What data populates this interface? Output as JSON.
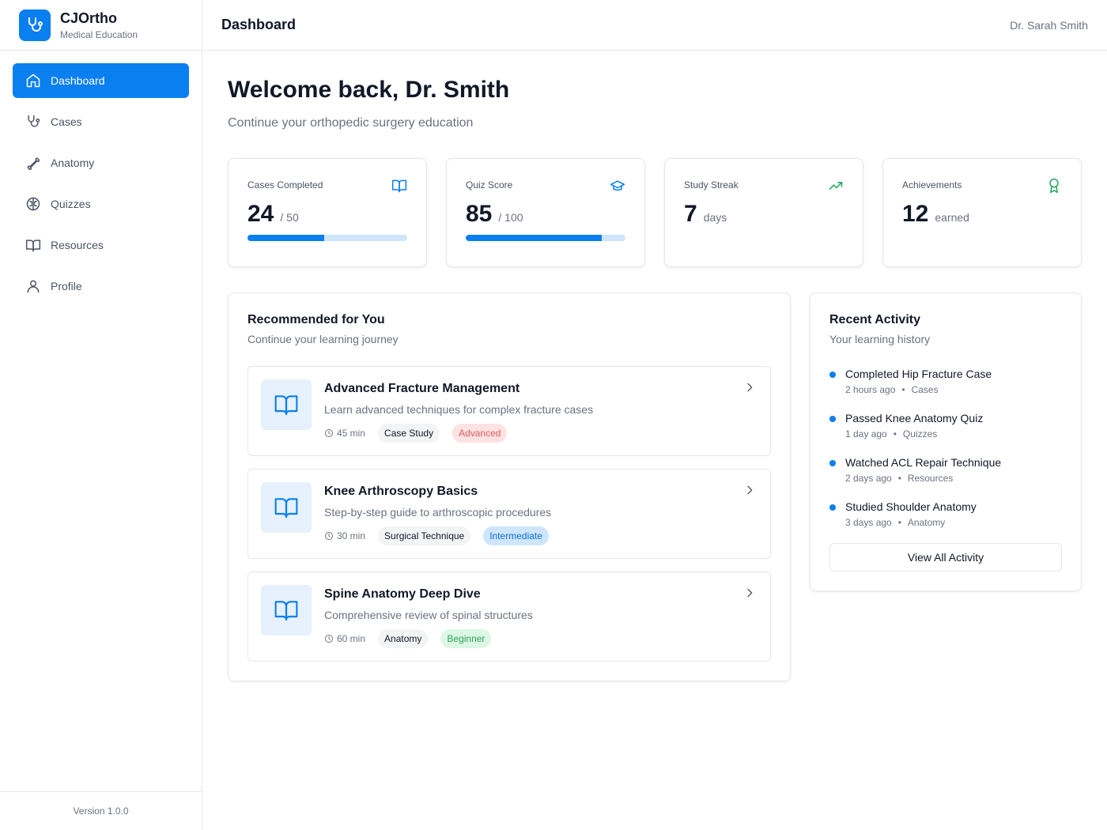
{
  "brand": {
    "name": "CJOrtho",
    "subtitle": "Medical Education"
  },
  "nav": {
    "items": [
      {
        "label": "Dashboard",
        "icon": "home-icon",
        "active": true
      },
      {
        "label": "Cases",
        "icon": "stethoscope-icon",
        "active": false
      },
      {
        "label": "Anatomy",
        "icon": "bone-icon",
        "active": false
      },
      {
        "label": "Quizzes",
        "icon": "brain-icon",
        "active": false
      },
      {
        "label": "Resources",
        "icon": "book-icon",
        "active": false
      },
      {
        "label": "Profile",
        "icon": "user-icon",
        "active": false
      }
    ]
  },
  "footer": {
    "version": "Version 1.0.0"
  },
  "header": {
    "title": "Dashboard",
    "user": "Dr. Sarah Smith"
  },
  "welcome": {
    "title": "Welcome back, Dr. Smith",
    "subtitle": "Continue your orthopedic surgery education"
  },
  "stats": [
    {
      "label": "Cases Completed",
      "value": "24",
      "unit": "/ 50",
      "icon": "book-open-icon",
      "progress_fraction": 0.48
    },
    {
      "label": "Quiz Score",
      "value": "85",
      "unit": "/ 100",
      "icon": "graduation-cap-icon",
      "progress_fraction": 0.85
    },
    {
      "label": "Study Streak",
      "value": "7",
      "unit": "days",
      "icon": "trending-up-icon"
    },
    {
      "label": "Achievements",
      "value": "12",
      "unit": "earned",
      "icon": "award-icon"
    }
  ],
  "recommended": {
    "title": "Recommended for You",
    "subtitle": "Continue your learning journey",
    "items": [
      {
        "title": "Advanced Fracture Management",
        "description": "Learn advanced techniques for complex fracture cases",
        "duration": "45 min",
        "category": "Case Study",
        "level": "Advanced"
      },
      {
        "title": "Knee Arthroscopy Basics",
        "description": "Step-by-step guide to arthroscopic procedures",
        "duration": "30 min",
        "category": "Surgical Technique",
        "level": "Intermediate"
      },
      {
        "title": "Spine Anatomy Deep Dive",
        "description": "Comprehensive review of spinal structures",
        "duration": "60 min",
        "category": "Anatomy",
        "level": "Beginner"
      }
    ]
  },
  "activity": {
    "title": "Recent Activity",
    "subtitle": "Your learning history",
    "items": [
      {
        "title": "Completed Hip Fracture Case",
        "time": "2 hours ago",
        "category": "Cases"
      },
      {
        "title": "Passed Knee Anatomy Quiz",
        "time": "1 day ago",
        "category": "Quizzes"
      },
      {
        "title": "Watched ACL Repair Technique",
        "time": "2 days ago",
        "category": "Resources"
      },
      {
        "title": "Studied Shoulder Anatomy",
        "time": "3 days ago",
        "category": "Anatomy"
      }
    ],
    "button_label": "View All Activity",
    "separator": "•"
  },
  "colors": {
    "accent": "#0a7ff0",
    "success": "#22a55a",
    "advanced": "#e05a5a",
    "intermediate": "#0a6fd6",
    "beginner": "#2fa35a"
  }
}
